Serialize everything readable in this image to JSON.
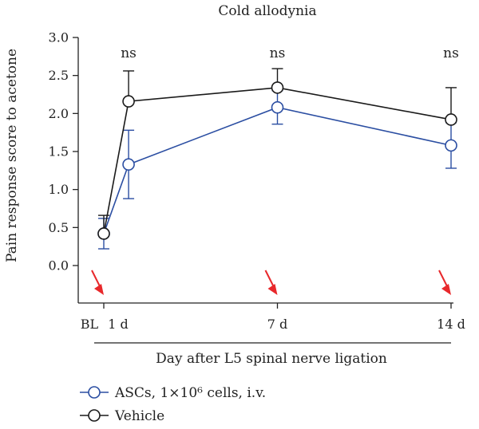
{
  "chart_data": {
    "type": "line",
    "title": "Cold allodynia",
    "xlabel": "Day after L5 spinal nerve ligation",
    "ylabel": "Pain response score to acetone",
    "ylim": [
      -0.5,
      3.0
    ],
    "y_ticks": [
      "0.0",
      "0.5",
      "1.0",
      "1.5",
      "2.0",
      "2.5",
      "3.0"
    ],
    "y_tick_values": [
      0.0,
      0.5,
      1.0,
      1.5,
      2.0,
      2.5,
      3.0
    ],
    "xlim": [
      -1.2,
      14.6
    ],
    "x_ticks": [
      {
        "label": "BL",
        "value": -0.55
      },
      {
        "label": "1 d",
        "value": 0.55
      },
      {
        "label": "7 d",
        "value": 7
      },
      {
        "label": "14 d",
        "value": 14
      }
    ],
    "grid": false,
    "legend_position": "bottom-left",
    "series": [
      {
        "name": "ASCs, 1×10⁶ cells, i.v.",
        "color": "#2b4ea2",
        "marker": "open-circle",
        "x": [
          0,
          1,
          7,
          14
        ],
        "y": [
          0.42,
          1.33,
          2.08,
          1.58
        ],
        "err": [
          0.2,
          0.45,
          0.22,
          0.3
        ]
      },
      {
        "name": "Vehicle",
        "color": "#1a1a1a",
        "marker": "open-circle",
        "x": [
          0,
          1,
          7,
          14
        ],
        "y": [
          0.42,
          2.16,
          2.34,
          1.92
        ],
        "err": [
          0.24,
          0.4,
          0.25,
          0.42
        ]
      }
    ],
    "annotations": [
      {
        "text": "ns",
        "x": 1
      },
      {
        "text": "ns",
        "x": 7
      },
      {
        "text": "ns",
        "x": 14
      }
    ],
    "arrow_color": "#e8282b",
    "arrows_x": [
      0,
      7,
      14
    ]
  }
}
